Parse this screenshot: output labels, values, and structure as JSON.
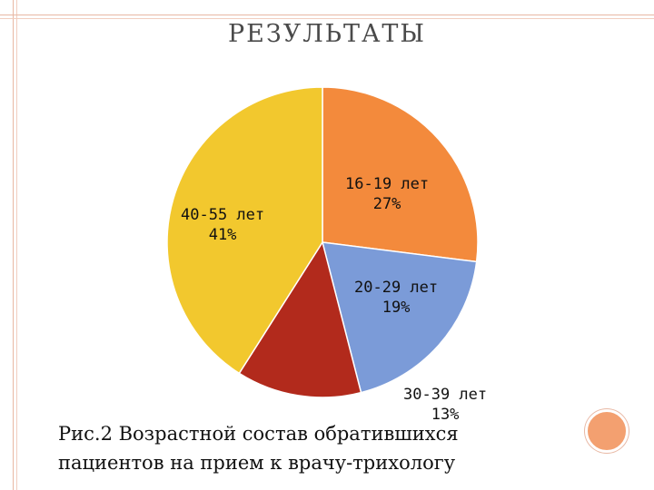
{
  "title": "РЕЗУЛЬТАТЫ",
  "caption": {
    "line1": "Рис.2 Возрастной состав обратившихся",
    "line2": "пациентов на прием к врачу-трихологу"
  },
  "chart_data": {
    "type": "pie",
    "title": "",
    "slices": [
      {
        "category": "16-19 лет",
        "value": 27,
        "label_pct": "27%",
        "color": "#f38a3c"
      },
      {
        "category": "20-29 лет",
        "value": 19,
        "label_pct": "19%",
        "color": "#7b9bd8"
      },
      {
        "category": "30-39 лет",
        "value": 13,
        "label_pct": "13%",
        "color": "#b22a1c"
      },
      {
        "category": "40-55 лет",
        "value": 41,
        "label_pct": "41%",
        "color": "#f2c82e"
      }
    ],
    "legend": "none"
  }
}
